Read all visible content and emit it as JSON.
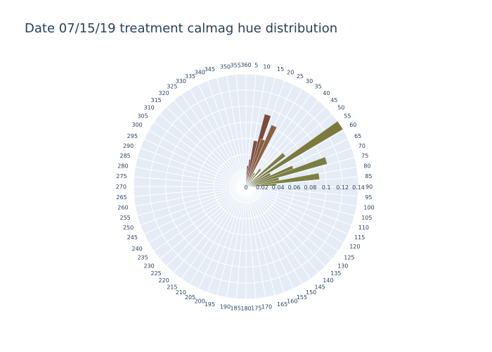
{
  "chart_data": {
    "type": "bar",
    "polar": true,
    "title": "Date 07/15/19 treatment calmag hue distribution",
    "angular_axis": {
      "rotation": 90,
      "direction": "clockwise",
      "tick_step": 5,
      "ticks": [
        "360",
        "5",
        "10",
        "15",
        "20",
        "25",
        "30",
        "35",
        "40",
        "45",
        "50",
        "55",
        "60",
        "65",
        "70",
        "75",
        "80",
        "85",
        "90",
        "95",
        "100",
        "105",
        "110",
        "115",
        "120",
        "125",
        "130",
        "135",
        "140",
        "145",
        "150",
        "155",
        "160",
        "165",
        "170",
        "175",
        "180",
        "185",
        "190",
        "195",
        "200",
        "205",
        "210",
        "215",
        "220",
        "225",
        "230",
        "235",
        "240",
        "245",
        "250",
        "255",
        "260",
        "265",
        "270",
        "275",
        "280",
        "285",
        "290",
        "295",
        "300",
        "305",
        "310",
        "315",
        "320",
        "325",
        "330",
        "335",
        "340",
        "345",
        "350",
        "355"
      ]
    },
    "radial_axis": {
      "angle": 90,
      "range": [
        0,
        0.14
      ],
      "ticks": [
        0,
        0.02,
        0.04,
        0.06,
        0.08,
        0.1,
        0.12,
        0.14
      ],
      "tick_labels": [
        "0",
        "0.02",
        "0.04",
        "0.06",
        "0.08",
        "0.1",
        "0.12",
        "0.14"
      ]
    },
    "bar_width_deg": 5,
    "bars": [
      {
        "theta": 3,
        "r": 0.017,
        "color": "#7a5038"
      },
      {
        "theta": 5,
        "r": 0.026,
        "color": "#7a4a3a"
      },
      {
        "theta": 9,
        "r": 0.034,
        "color": "#7e4f3c"
      },
      {
        "theta": 12,
        "r": 0.058,
        "color": "#7e4e3d"
      },
      {
        "theta": 17,
        "r": 0.093,
        "color": "#7d4b3a"
      },
      {
        "theta": 20,
        "r": 0.062,
        "color": "#8a5c3a"
      },
      {
        "theta": 22,
        "r": 0.012,
        "color": "#856038"
      },
      {
        "theta": 25,
        "r": 0.083,
        "color": "#8b6040"
      },
      {
        "theta": 32,
        "r": 0.02,
        "color": "#8a7a40"
      },
      {
        "theta": 40,
        "r": 0.028,
        "color": "#8a7a3c"
      },
      {
        "theta": 50,
        "r": 0.062,
        "color": "#7d7c42"
      },
      {
        "theta": 57,
        "r": 0.14,
        "color": "#7b7a3c"
      },
      {
        "theta": 63,
        "r": 0.034,
        "color": "#7a7c3e"
      },
      {
        "theta": 68,
        "r": 0.063,
        "color": "#7b7c40"
      },
      {
        "theta": 72,
        "r": 0.105,
        "color": "#7b7e42"
      },
      {
        "theta": 77,
        "r": 0.042,
        "color": "#80823f"
      },
      {
        "theta": 82,
        "r": 0.092,
        "color": "#7e803f"
      },
      {
        "theta": 86,
        "r": 0.038,
        "color": "#878a45"
      }
    ],
    "colors": {
      "plot_background": "#e5ecf6",
      "grid": "#ffffff",
      "text": "#2a3f5f"
    }
  }
}
